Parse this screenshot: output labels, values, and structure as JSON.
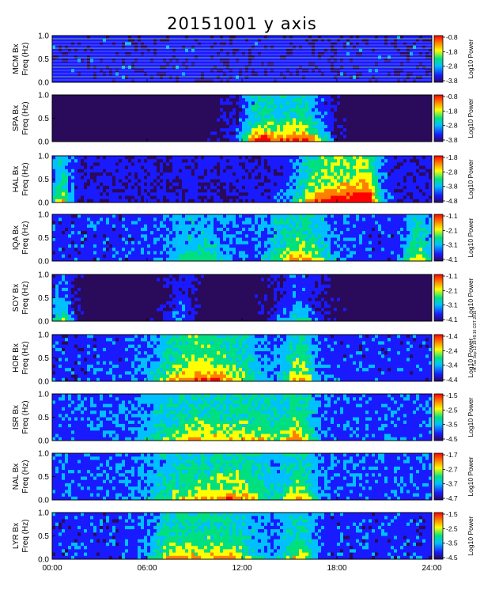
{
  "chart_data": {
    "type": "heatmap",
    "title": "20151001 y axis",
    "x_axis": {
      "range": [
        "00:00",
        "24:00"
      ],
      "ticks": [
        "00:00",
        "06:00",
        "12:00",
        "18:00",
        "24:00"
      ]
    },
    "y_axis": {
      "label": "Freq (Hz)",
      "range": [
        0.0,
        1.0
      ],
      "ticks": [
        "0.0",
        "0.5",
        "1.0"
      ]
    },
    "colorbar": {
      "label": "Log10 Power",
      "colormap": "rainbow",
      "colors": [
        "#2a0a5a",
        "#1a1aff",
        "#00c0ff",
        "#00e080",
        "#ffff00",
        "#ff8000",
        "#ff0000"
      ]
    },
    "grid": false,
    "panels": [
      {
        "station": "MCM Bx",
        "cbar_ticks": [
          "-0.8",
          "-1.8",
          "-2.8",
          "-3.8"
        ]
      },
      {
        "station": "SPA Bx",
        "cbar_ticks": [
          "-0.8",
          "-1.8",
          "-2.8",
          "-3.8"
        ]
      },
      {
        "station": "HAL Bx",
        "cbar_ticks": [
          "-1.8",
          "-2.8",
          "-3.8",
          "-4.8"
        ]
      },
      {
        "station": "IQA Bx",
        "cbar_ticks": [
          "-1.1",
          "-2.1",
          "-3.1",
          "-4.1"
        ]
      },
      {
        "station": "SOY Bx",
        "cbar_ticks": [
          "-1.1",
          "-2.1",
          "-3.1",
          "-4.1"
        ]
      },
      {
        "station": "HOR Bx",
        "cbar_ticks": [
          "-1.4",
          "-2.4",
          "-3.4",
          "-4.4"
        ]
      },
      {
        "station": "ISR Bx",
        "cbar_ticks": [
          "-1.5",
          "-2.5",
          "-3.5",
          "-4.5"
        ]
      },
      {
        "station": "NAL Bx",
        "cbar_ticks": [
          "-1.7",
          "-2.7",
          "-3.7",
          "-4.7"
        ]
      },
      {
        "station": "LYR Bx",
        "cbar_ticks": [
          "-1.5",
          "-2.5",
          "-3.5",
          "-4.5"
        ]
      }
    ]
  },
  "sidenote": "mt Tue Sep 13 18:49:16 CDT 2016"
}
